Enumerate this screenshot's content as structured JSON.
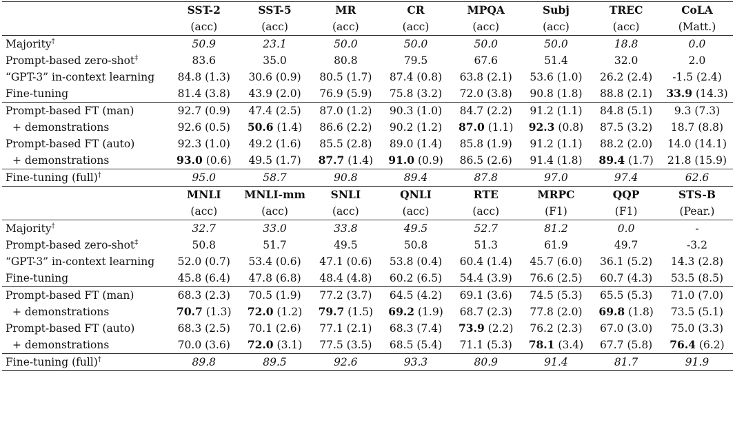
{
  "tables": [
    {
      "headers": [
        {
          "name": "SST-2",
          "metric": "(acc)"
        },
        {
          "name": "SST-5",
          "metric": "(acc)"
        },
        {
          "name": "MR",
          "metric": "(acc)"
        },
        {
          "name": "CR",
          "metric": "(acc)"
        },
        {
          "name": "MPQA",
          "metric": "(acc)"
        },
        {
          "name": "Subj",
          "metric": "(acc)"
        },
        {
          "name": "TREC",
          "metric": "(acc)"
        },
        {
          "name": "CoLA",
          "metric": "(Matt.)"
        }
      ],
      "sections": [
        [
          {
            "label": "Majority",
            "mark": "†",
            "italic": true,
            "cells": [
              {
                "v": "50.9"
              },
              {
                "v": "23.1"
              },
              {
                "v": "50.0"
              },
              {
                "v": "50.0"
              },
              {
                "v": "50.0"
              },
              {
                "v": "50.0"
              },
              {
                "v": "18.8"
              },
              {
                "v": "0.0"
              }
            ]
          },
          {
            "label": "Prompt-based zero-shot",
            "mark": "‡",
            "cells": [
              {
                "v": "83.6"
              },
              {
                "v": "35.0"
              },
              {
                "v": "80.8"
              },
              {
                "v": "79.5"
              },
              {
                "v": "67.6"
              },
              {
                "v": "51.4"
              },
              {
                "v": "32.0"
              },
              {
                "v": "2.0"
              }
            ]
          },
          {
            "label": "“GPT-3” in-context learning",
            "cells": [
              {
                "v": "84.8",
                "sd": "(1.3)"
              },
              {
                "v": "30.6",
                "sd": "(0.9)"
              },
              {
                "v": "80.5",
                "sd": "(1.7)"
              },
              {
                "v": "87.4",
                "sd": "(0.8)"
              },
              {
                "v": "63.8",
                "sd": "(2.1)"
              },
              {
                "v": "53.6",
                "sd": "(1.0)"
              },
              {
                "v": "26.2",
                "sd": "(2.4)"
              },
              {
                "v": "-1.5",
                "sd": "(2.4)"
              }
            ]
          },
          {
            "label": "Fine-tuning",
            "cells": [
              {
                "v": "81.4",
                "sd": "(3.8)"
              },
              {
                "v": "43.9",
                "sd": "(2.0)"
              },
              {
                "v": "76.9",
                "sd": "(5.9)"
              },
              {
                "v": "75.8",
                "sd": "(3.2)"
              },
              {
                "v": "72.0",
                "sd": "(3.8)"
              },
              {
                "v": "90.8",
                "sd": "(1.8)"
              },
              {
                "v": "88.8",
                "sd": "(2.1)"
              },
              {
                "v": "33.9",
                "sd": "(14.3)",
                "bold": true
              }
            ]
          }
        ],
        [
          {
            "label": "Prompt-based FT (man)",
            "cells": [
              {
                "v": "92.7",
                "sd": "(0.9)"
              },
              {
                "v": "47.4",
                "sd": "(2.5)"
              },
              {
                "v": "87.0",
                "sd": "(1.2)"
              },
              {
                "v": "90.3",
                "sd": "(1.0)"
              },
              {
                "v": "84.7",
                "sd": "(2.2)"
              },
              {
                "v": "91.2",
                "sd": "(1.1)"
              },
              {
                "v": "84.8",
                "sd": "(5.1)"
              },
              {
                "v": "9.3",
                "sd": "(7.3)"
              }
            ]
          },
          {
            "label": "+ demonstrations",
            "indent": true,
            "cells": [
              {
                "v": "92.6",
                "sd": "(0.5)"
              },
              {
                "v": "50.6",
                "sd": "(1.4)",
                "bold": true
              },
              {
                "v": "86.6",
                "sd": "(2.2)"
              },
              {
                "v": "90.2",
                "sd": "(1.2)"
              },
              {
                "v": "87.0",
                "sd": "(1.1)",
                "bold": true
              },
              {
                "v": "92.3",
                "sd": "(0.8)",
                "bold": true
              },
              {
                "v": "87.5",
                "sd": "(3.2)"
              },
              {
                "v": "18.7",
                "sd": "(8.8)"
              }
            ]
          },
          {
            "label": "Prompt-based FT (auto)",
            "cells": [
              {
                "v": "92.3",
                "sd": "(1.0)"
              },
              {
                "v": "49.2",
                "sd": "(1.6)"
              },
              {
                "v": "85.5",
                "sd": "(2.8)"
              },
              {
                "v": "89.0",
                "sd": "(1.4)"
              },
              {
                "v": "85.8",
                "sd": "(1.9)"
              },
              {
                "v": "91.2",
                "sd": "(1.1)"
              },
              {
                "v": "88.2",
                "sd": "(2.0)"
              },
              {
                "v": "14.0",
                "sd": "(14.1)"
              }
            ]
          },
          {
            "label": "+ demonstrations",
            "indent": true,
            "cells": [
              {
                "v": "93.0",
                "sd": "(0.6)",
                "bold": true
              },
              {
                "v": "49.5",
                "sd": "(1.7)"
              },
              {
                "v": "87.7",
                "sd": "(1.4)",
                "bold": true
              },
              {
                "v": "91.0",
                "sd": "(0.9)",
                "bold": true
              },
              {
                "v": "86.5",
                "sd": "(2.6)"
              },
              {
                "v": "91.4",
                "sd": "(1.8)"
              },
              {
                "v": "89.4",
                "sd": "(1.7)",
                "bold": true
              },
              {
                "v": "21.8",
                "sd": "(15.9)"
              }
            ]
          }
        ],
        [
          {
            "label": "Fine-tuning (full)",
            "mark": "†",
            "italic": true,
            "cells": [
              {
                "v": "95.0"
              },
              {
                "v": "58.7"
              },
              {
                "v": "90.8"
              },
              {
                "v": "89.4"
              },
              {
                "v": "87.8"
              },
              {
                "v": "97.0"
              },
              {
                "v": "97.4"
              },
              {
                "v": "62.6"
              }
            ]
          }
        ]
      ]
    },
    {
      "headers": [
        {
          "name": "MNLI",
          "metric": "(acc)"
        },
        {
          "name": "MNLI-mm",
          "metric": "(acc)"
        },
        {
          "name": "SNLI",
          "metric": "(acc)"
        },
        {
          "name": "QNLI",
          "metric": "(acc)"
        },
        {
          "name": "RTE",
          "metric": "(acc)"
        },
        {
          "name": "MRPC",
          "metric": "(F1)"
        },
        {
          "name": "QQP",
          "metric": "(F1)"
        },
        {
          "name": "STS-B",
          "metric": "(Pear.)"
        }
      ],
      "sections": [
        [
          {
            "label": "Majority",
            "mark": "†",
            "italic": true,
            "cells": [
              {
                "v": "32.7"
              },
              {
                "v": "33.0"
              },
              {
                "v": "33.8"
              },
              {
                "v": "49.5"
              },
              {
                "v": "52.7"
              },
              {
                "v": "81.2"
              },
              {
                "v": "0.0"
              },
              {
                "v": "-"
              }
            ]
          },
          {
            "label": "Prompt-based zero-shot",
            "mark": "‡",
            "cells": [
              {
                "v": "50.8"
              },
              {
                "v": "51.7"
              },
              {
                "v": "49.5"
              },
              {
                "v": "50.8"
              },
              {
                "v": "51.3"
              },
              {
                "v": "61.9"
              },
              {
                "v": "49.7"
              },
              {
                "v": "-3.2"
              }
            ]
          },
          {
            "label": "“GPT-3” in-context learning",
            "cells": [
              {
                "v": "52.0",
                "sd": "(0.7)"
              },
              {
                "v": "53.4",
                "sd": "(0.6)"
              },
              {
                "v": "47.1",
                "sd": "(0.6)"
              },
              {
                "v": "53.8",
                "sd": "(0.4)"
              },
              {
                "v": "60.4",
                "sd": "(1.4)"
              },
              {
                "v": "45.7",
                "sd": "(6.0)"
              },
              {
                "v": "36.1",
                "sd": "(5.2)"
              },
              {
                "v": "14.3",
                "sd": "(2.8)"
              }
            ]
          },
          {
            "label": "Fine-tuning",
            "cells": [
              {
                "v": "45.8",
                "sd": "(6.4)"
              },
              {
                "v": "47.8",
                "sd": "(6.8)"
              },
              {
                "v": "48.4",
                "sd": "(4.8)"
              },
              {
                "v": "60.2",
                "sd": "(6.5)"
              },
              {
                "v": "54.4",
                "sd": "(3.9)"
              },
              {
                "v": "76.6",
                "sd": "(2.5)"
              },
              {
                "v": "60.7",
                "sd": "(4.3)"
              },
              {
                "v": "53.5",
                "sd": "(8.5)"
              }
            ]
          }
        ],
        [
          {
            "label": "Prompt-based FT (man)",
            "cells": [
              {
                "v": "68.3",
                "sd": "(2.3)"
              },
              {
                "v": "70.5",
                "sd": "(1.9)"
              },
              {
                "v": "77.2",
                "sd": "(3.7)"
              },
              {
                "v": "64.5",
                "sd": "(4.2)"
              },
              {
                "v": "69.1",
                "sd": "(3.6)"
              },
              {
                "v": "74.5",
                "sd": "(5.3)"
              },
              {
                "v": "65.5",
                "sd": "(5.3)"
              },
              {
                "v": "71.0",
                "sd": "(7.0)"
              }
            ]
          },
          {
            "label": "+ demonstrations",
            "indent": true,
            "cells": [
              {
                "v": "70.7",
                "sd": "(1.3)",
                "bold": true
              },
              {
                "v": "72.0",
                "sd": "(1.2)",
                "bold": true
              },
              {
                "v": "79.7",
                "sd": "(1.5)",
                "bold": true
              },
              {
                "v": "69.2",
                "sd": "(1.9)",
                "bold": true
              },
              {
                "v": "68.7",
                "sd": "(2.3)"
              },
              {
                "v": "77.8",
                "sd": "(2.0)"
              },
              {
                "v": "69.8",
                "sd": "(1.8)",
                "bold": true
              },
              {
                "v": "73.5",
                "sd": "(5.1)"
              }
            ]
          },
          {
            "label": "Prompt-based FT (auto)",
            "cells": [
              {
                "v": "68.3",
                "sd": "(2.5)"
              },
              {
                "v": "70.1",
                "sd": "(2.6)"
              },
              {
                "v": "77.1",
                "sd": "(2.1)"
              },
              {
                "v": "68.3",
                "sd": "(7.4)"
              },
              {
                "v": "73.9",
                "sd": "(2.2)",
                "bold": true
              },
              {
                "v": "76.2",
                "sd": "(2.3)"
              },
              {
                "v": "67.0",
                "sd": "(3.0)"
              },
              {
                "v": "75.0",
                "sd": "(3.3)"
              }
            ]
          },
          {
            "label": "+ demonstrations",
            "indent": true,
            "cells": [
              {
                "v": "70.0",
                "sd": "(3.6)"
              },
              {
                "v": "72.0",
                "sd": "(3.1)",
                "bold": true
              },
              {
                "v": "77.5",
                "sd": "(3.5)"
              },
              {
                "v": "68.5",
                "sd": "(5.4)"
              },
              {
                "v": "71.1",
                "sd": "(5.3)"
              },
              {
                "v": "78.1",
                "sd": "(3.4)",
                "bold": true
              },
              {
                "v": "67.7",
                "sd": "(5.8)"
              },
              {
                "v": "76.4",
                "sd": "(6.2)",
                "bold": true
              }
            ]
          }
        ],
        [
          {
            "label": "Fine-tuning (full)",
            "mark": "†",
            "italic": true,
            "cells": [
              {
                "v": "89.8"
              },
              {
                "v": "89.5"
              },
              {
                "v": "92.6"
              },
              {
                "v": "93.3"
              },
              {
                "v": "80.9"
              },
              {
                "v": "91.4"
              },
              {
                "v": "81.7"
              },
              {
                "v": "91.9"
              }
            ]
          }
        ]
      ]
    }
  ]
}
